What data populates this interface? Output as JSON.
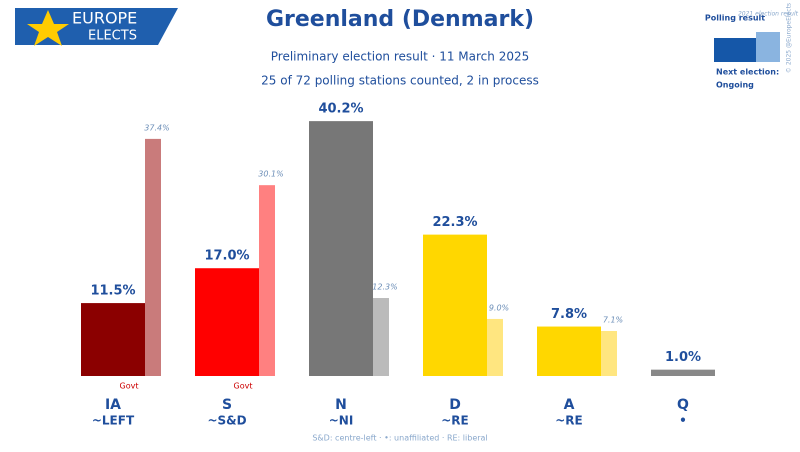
{
  "chart_data": {
    "type": "bar",
    "logo": [
      "EUROPE",
      "ELECTS"
    ],
    "title": "Greenland (Denmark)",
    "subtitle": "Preliminary election result · 11 March 2025",
    "subtitle2": "25 of 72 polling stations counted, 2 in process",
    "categories": [
      "IA",
      "S",
      "N",
      "D",
      "A",
      "Q"
    ],
    "category_groups": [
      "~LEFT",
      "~S&D",
      "~NI",
      "~RE",
      "~RE",
      "•"
    ],
    "status_labels": [
      "Govt",
      "Govt",
      null,
      null,
      null,
      null
    ],
    "series": [
      {
        "name": "Polling result",
        "color": "#1557a8",
        "colors": [
          "#8b0000",
          "#ff0000",
          "#777777",
          "#ffd700",
          "#ffd700",
          "#888888"
        ],
        "values": [
          11.5,
          17.0,
          40.2,
          22.3,
          7.8,
          1.0
        ],
        "value_labels": [
          "11.5%",
          "17.0%",
          "40.2%",
          "22.3%",
          "7.8%",
          "1.0%"
        ]
      },
      {
        "name": "2021 election result",
        "color": "#8ab4e0",
        "colors": [
          "#c97b7b",
          "#ff8080",
          "#bbbbbb",
          "#ffe680",
          "#ffe680",
          "#cccccc"
        ],
        "values": [
          37.4,
          30.1,
          12.3,
          9.0,
          7.1,
          null
        ],
        "value_labels": [
          "37.4%",
          "30.1%",
          "12.3%",
          "9.0%",
          "7.1%",
          null
        ]
      }
    ],
    "next_election_label": "Next election:",
    "next_election": "Ongoing",
    "copyright": "© 2025 @EuropeElects",
    "footnote": "S&D: centre-left · •: unaffiliated · RE: liberal"
  }
}
